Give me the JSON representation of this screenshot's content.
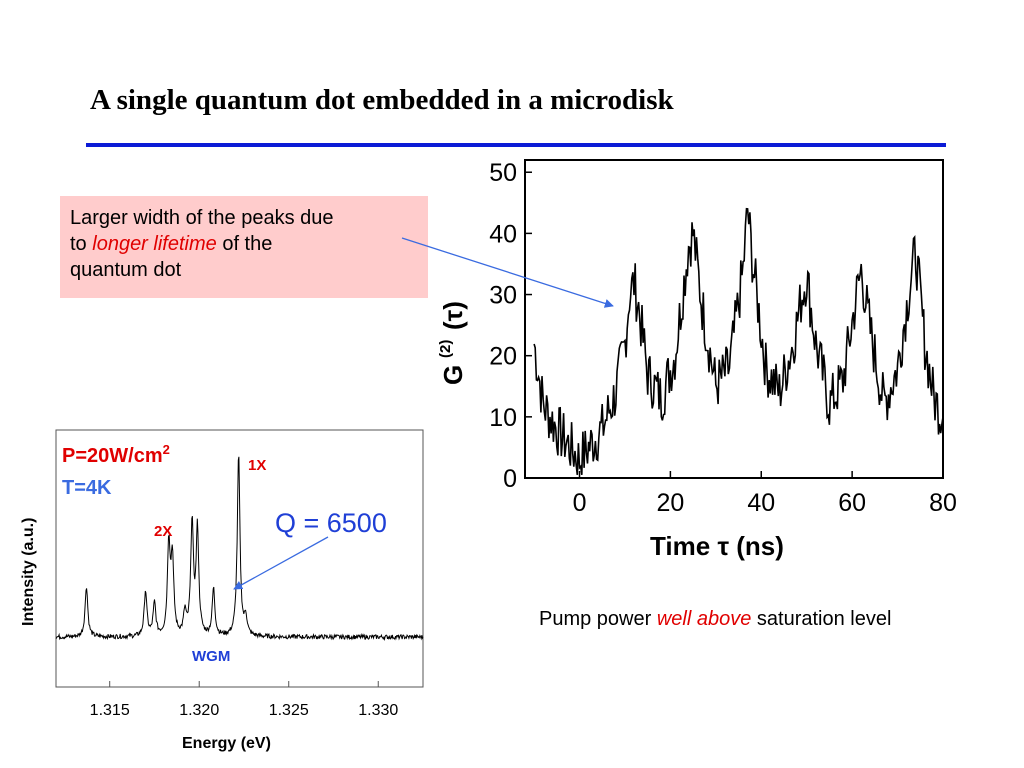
{
  "slide": {
    "title": "A single quantum dot embedded in a microdisk",
    "callout": {
      "line1": "Larger width of the peaks due",
      "line2_prefix": "to ",
      "line2_em": "longer lifetime",
      "line2_suffix": " of the",
      "line3": "quantum dot"
    },
    "pump_note": {
      "prefix": "Pump power ",
      "em": "well above",
      "suffix": " saturation level"
    }
  },
  "colors": {
    "rule": "#0b1bd6",
    "callout_bg": "#ffcccc",
    "emphasis": "#e00000",
    "arrow": "#3a6be0",
    "q_label": "#1f3fd6"
  },
  "chart_data": [
    {
      "type": "line",
      "ylabel": "G(2) (τ)",
      "ylabel_main": "G",
      "ylabel_sup": "(2)",
      "ylabel_arg": "(τ)",
      "xlabel": "Time τ (ns)",
      "xlim": [
        -12,
        80
      ],
      "ylim": [
        0,
        52
      ],
      "xticks": [
        "0",
        "20",
        "40",
        "60",
        "80"
      ],
      "yticks": [
        "0",
        "10",
        "20",
        "30",
        "40",
        "50"
      ],
      "series": [
        {
          "description_peaks_at_ns": [
            12,
            24.5,
            37,
            49.5,
            62,
            74
          ],
          "peak_heights": [
            32,
            40,
            44,
            33,
            34,
            37
          ],
          "baseline_min": 2
        }
      ],
      "seed_points": [
        [
          -10,
          22
        ],
        [
          -8,
          12
        ],
        [
          -5,
          8
        ],
        [
          -2,
          5
        ],
        [
          0,
          3
        ],
        [
          2,
          5
        ],
        [
          5,
          8
        ],
        [
          8,
          14
        ],
        [
          10,
          22
        ],
        [
          11,
          30
        ],
        [
          12,
          32
        ],
        [
          13,
          28
        ],
        [
          15,
          17
        ],
        [
          18,
          13
        ],
        [
          21,
          20
        ],
        [
          24,
          38
        ],
        [
          25,
          40
        ],
        [
          27,
          28
        ],
        [
          30,
          15
        ],
        [
          33,
          18
        ],
        [
          36,
          34
        ],
        [
          37,
          44
        ],
        [
          38,
          36
        ],
        [
          41,
          18
        ],
        [
          44,
          14
        ],
        [
          47,
          22
        ],
        [
          49,
          30
        ],
        [
          50,
          33
        ],
        [
          52,
          22
        ],
        [
          55,
          12
        ],
        [
          58,
          16
        ],
        [
          61,
          30
        ],
        [
          62,
          34
        ],
        [
          64,
          24
        ],
        [
          67,
          12
        ],
        [
          70,
          18
        ],
        [
          73,
          33
        ],
        [
          74,
          37
        ],
        [
          76,
          22
        ],
        [
          78,
          13
        ],
        [
          80,
          10
        ]
      ]
    },
    {
      "type": "line",
      "ylabel": "Intensity (a.u.)",
      "xlabel": "Energy (eV)",
      "xlim": [
        1.312,
        1.3325
      ],
      "xticks": [
        "1.315",
        "1.320",
        "1.325",
        "1.330"
      ],
      "annotations": {
        "power": "P=20W/cm",
        "power_sup": "2",
        "temp": "T=4K",
        "x1": "1X",
        "x2": "2X",
        "wgm": "WGM",
        "q": "Q = 6500"
      },
      "peaks": [
        {
          "energy": 1.3137,
          "height": 0.28
        },
        {
          "energy": 1.317,
          "height": 0.25
        },
        {
          "energy": 1.3175,
          "height": 0.18
        },
        {
          "energy": 1.3183,
          "height": 0.5
        },
        {
          "energy": 1.3185,
          "height": 0.42
        },
        {
          "energy": 1.3192,
          "height": 0.12
        },
        {
          "energy": 1.3196,
          "height": 0.62
        },
        {
          "energy": 1.3199,
          "height": 0.58
        },
        {
          "energy": 1.3208,
          "height": 0.26
        },
        {
          "energy": 1.3222,
          "height": 1.0
        },
        {
          "energy": 1.3226,
          "height": 0.1
        }
      ]
    }
  ]
}
